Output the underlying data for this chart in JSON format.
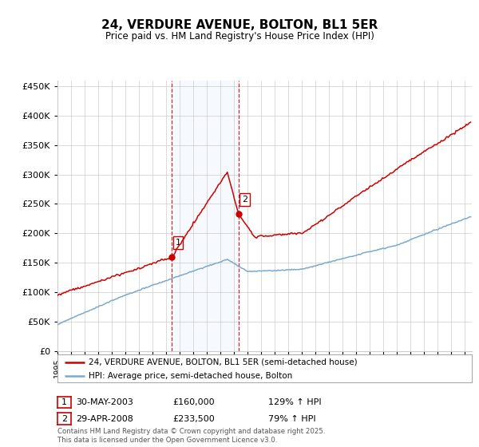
{
  "title": "24, VERDURE AVENUE, BOLTON, BL1 5ER",
  "subtitle": "Price paid vs. HM Land Registry's House Price Index (HPI)",
  "bg_color": "#ffffff",
  "plot_bg_color": "#ffffff",
  "grid_color": "#cccccc",
  "red_line_color": "#cc0000",
  "blue_line_color": "#7aaacc",
  "shade_color": "#ddeeff",
  "ylim": [
    0,
    460000
  ],
  "yticks": [
    0,
    50000,
    100000,
    150000,
    200000,
    250000,
    300000,
    350000,
    400000,
    450000
  ],
  "ytick_labels": [
    "£0",
    "£50K",
    "£100K",
    "£150K",
    "£200K",
    "£250K",
    "£300K",
    "£350K",
    "£400K",
    "£450K"
  ],
  "xmin": 1995,
  "xmax": 2025.5,
  "sale1_date": 2003.41,
  "sale1_price": 160000,
  "sale2_date": 2008.33,
  "sale2_price": 233500,
  "legend_red": "24, VERDURE AVENUE, BOLTON, BL1 5ER (semi-detached house)",
  "legend_blue": "HPI: Average price, semi-detached house, Bolton",
  "copyright": "Contains HM Land Registry data © Crown copyright and database right 2025.\nThis data is licensed under the Open Government Licence v3.0."
}
